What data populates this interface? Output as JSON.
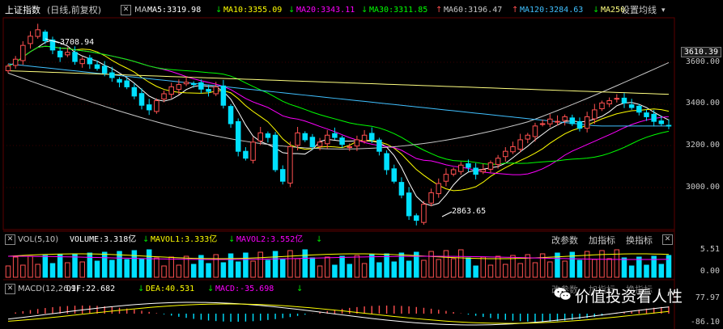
{
  "header": {
    "title": "上证指数",
    "subtitle": "(日线,前复权)",
    "settings_label": "设置均线",
    "ma_label": "MA",
    "ma": [
      {
        "label": "MA5:3319.98",
        "arrow": "↓",
        "color": "#ffffff"
      },
      {
        "label": "MA10:3355.09",
        "arrow": "↓",
        "color": "#ffff00"
      },
      {
        "label": "MA20:3343.11",
        "arrow": "↓",
        "color": "#ff00ff"
      },
      {
        "label": "MA30:3311.85",
        "arrow": "↑",
        "color": "#00ff00"
      },
      {
        "label": "MA60:3196.47",
        "arrow": "↑",
        "color": "#c8c8c8"
      },
      {
        "label": "MA120:3284.63",
        "arrow": "↓",
        "color": "#40c0ff"
      },
      {
        "label": "MA250",
        "arrow": "",
        "color": "#ffff80"
      }
    ]
  },
  "price_axis": {
    "ticks": [
      "3600.00",
      "3400.00",
      "3200.00",
      "3000.00"
    ],
    "current": "3610.39"
  },
  "annotations": {
    "high": "3708.94",
    "low": "2863.65"
  },
  "volume_panel": {
    "title": "VOL(5,10)",
    "items": [
      {
        "label": "VOLUME:3.318亿",
        "arrow": "↓",
        "color": "#ffffff"
      },
      {
        "label": "MAVOL1:3.333亿",
        "arrow": "↓",
        "color": "#ffff00"
      },
      {
        "label": "MAVOL2:3.552亿",
        "arrow": "↓",
        "color": "#ff00ff"
      }
    ],
    "ticks": [
      "5.51",
      "0.00"
    ],
    "buttons": [
      "改参数",
      "加指标",
      "换指标"
    ]
  },
  "macd_panel": {
    "title": "MACD(12,26,9)",
    "items": [
      {
        "label": "DIF:22.682",
        "arrow": "↓",
        "color": "#ffffff"
      },
      {
        "label": "DEA:40.531",
        "arrow": "↓",
        "color": "#ffff00"
      },
      {
        "label": "MACD:-35.698",
        "arrow": "↓",
        "color": "#ff00ff"
      }
    ],
    "ticks": [
      "77.97",
      "-86.10"
    ],
    "buttons": [
      "改参数",
      "加指标",
      "换指标"
    ]
  },
  "watermark": {
    "text": "价值投资看人性",
    "icon": "wechat-icon"
  },
  "colors": {
    "up": "#ff5050",
    "down": "#00e0ff",
    "ma5": "#ffffff",
    "ma10": "#ffff00",
    "ma20": "#ff00ff",
    "ma30": "#00ff00",
    "ma60": "#c8c8c8",
    "ma120": "#40c0ff",
    "ma250": "#ffff80"
  },
  "chart_data": {
    "type": "candlestick",
    "ylim": [
      2840,
      3760
    ],
    "close": [
      3550,
      3580,
      3640,
      3680,
      3708,
      3660,
      3620,
      3590,
      3610,
      3570,
      3580,
      3560,
      3540,
      3520,
      3500,
      3480,
      3460,
      3420,
      3380,
      3360,
      3400,
      3430,
      3460,
      3470,
      3480,
      3470,
      3450,
      3440,
      3460,
      3380,
      3300,
      3180,
      3150,
      3220,
      3260,
      3240,
      3100,
      3050,
      3200,
      3260,
      3230,
      3200,
      3220,
      3250,
      3240,
      3210,
      3200,
      3230,
      3250,
      3230,
      3180,
      3100,
      3050,
      2990,
      2900,
      2880,
      2950,
      3000,
      3040,
      3080,
      3100,
      3120,
      3110,
      3080,
      3100,
      3130,
      3150,
      3180,
      3200,
      3230,
      3250,
      3290,
      3300,
      3320,
      3310,
      3330,
      3300,
      3280,
      3330,
      3360,
      3390,
      3400,
      3410,
      3390,
      3370,
      3350,
      3330,
      3310,
      3300,
      3290
    ]
  }
}
